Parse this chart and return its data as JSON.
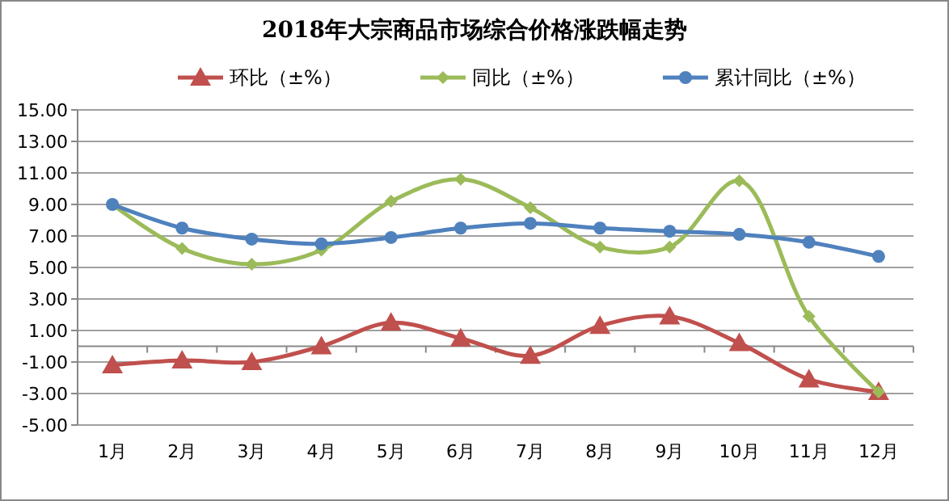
{
  "chart_data": {
    "type": "line",
    "title": "2018年大宗商品市场综合价格涨跌幅走势",
    "categories": [
      "1月",
      "2月",
      "3月",
      "4月",
      "5月",
      "6月",
      "7月",
      "8月",
      "9月",
      "10月",
      "11月",
      "12月"
    ],
    "series": [
      {
        "name": "环比（±%）",
        "color": "#c0504d",
        "marker": "triangle",
        "values": [
          -1.2,
          -0.9,
          -1.0,
          0.0,
          1.5,
          0.5,
          -0.6,
          1.3,
          1.9,
          0.2,
          -2.1,
          -2.9
        ]
      },
      {
        "name": "同比（±%）",
        "color": "#9bbb59",
        "marker": "diamond",
        "values": [
          9.0,
          6.2,
          5.2,
          6.1,
          9.2,
          10.6,
          8.8,
          6.3,
          6.3,
          10.5,
          1.9,
          -2.9
        ]
      },
      {
        "name": "累计同比（±%）",
        "color": "#4f81bd",
        "marker": "circle",
        "values": [
          9.0,
          7.5,
          6.8,
          6.5,
          6.9,
          7.5,
          7.8,
          7.5,
          7.3,
          7.1,
          6.6,
          5.7
        ]
      }
    ],
    "ylim": [
      -5,
      15
    ],
    "yticks": [
      {
        "value": -5,
        "label": "-5.00"
      },
      {
        "value": -3,
        "label": "-3.00"
      },
      {
        "value": -1,
        "label": "-1.00"
      },
      {
        "value": 1,
        "label": "1.00"
      },
      {
        "value": 3,
        "label": "3.00"
      },
      {
        "value": 5,
        "label": "5.00"
      },
      {
        "value": 7,
        "label": "7.00"
      },
      {
        "value": 9,
        "label": "9.00"
      },
      {
        "value": 11,
        "label": "11.00"
      },
      {
        "value": 13,
        "label": "13.00"
      },
      {
        "value": 15,
        "label": "15.00"
      }
    ],
    "grid": "y",
    "legend": "top",
    "line_style": "solid"
  }
}
